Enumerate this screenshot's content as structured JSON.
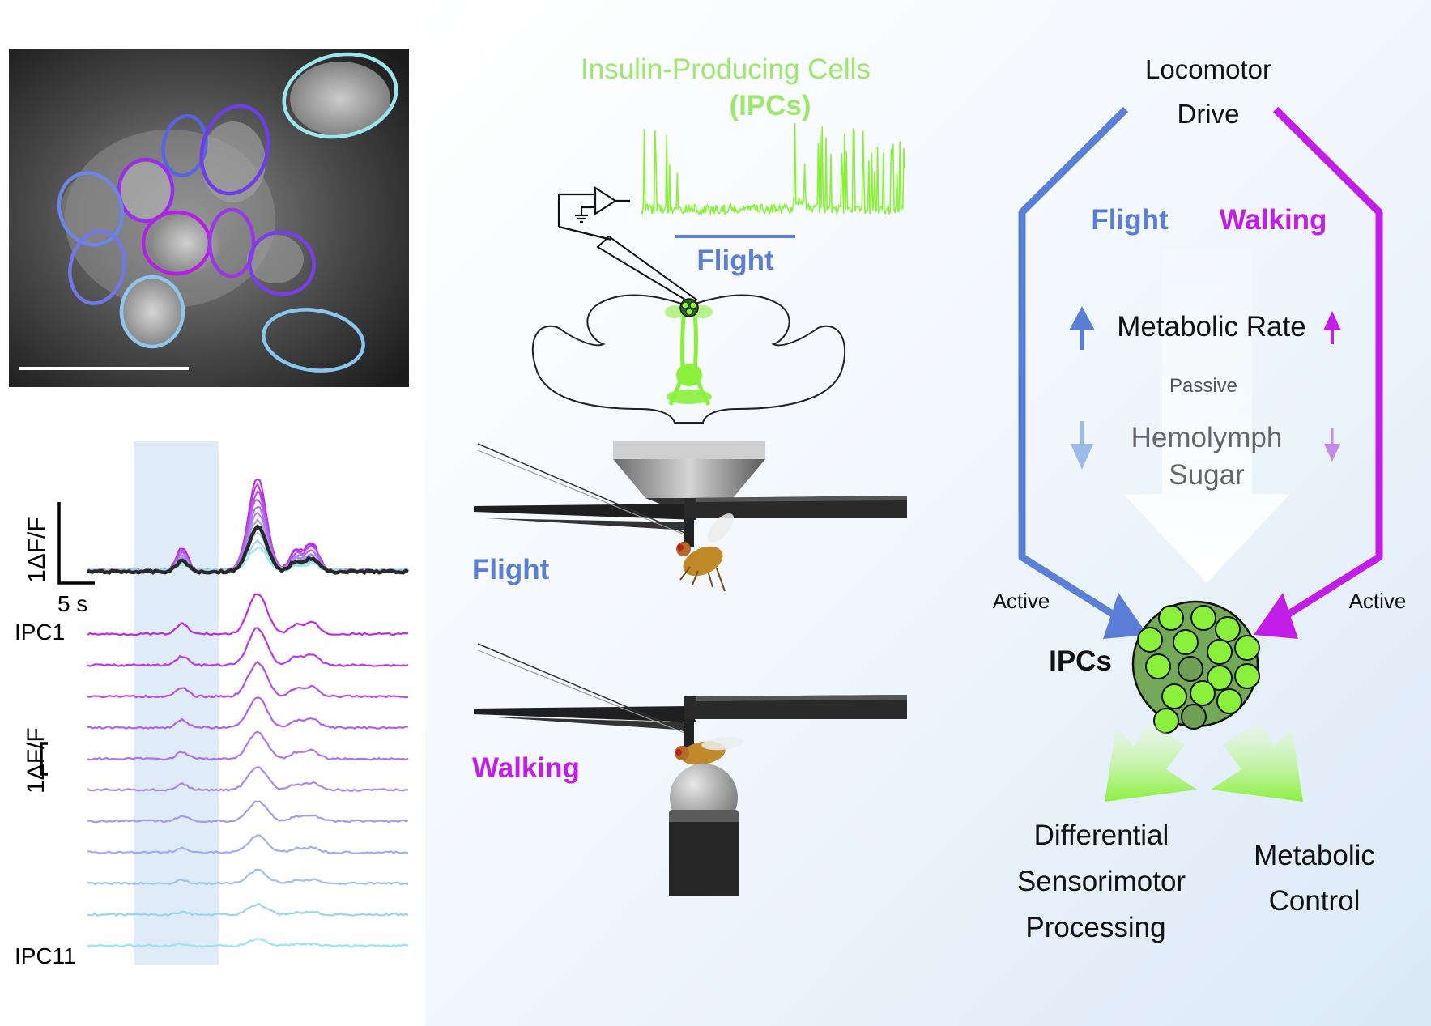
{
  "figure": {
    "panel_left": {
      "scale_bar_1": "1ΔF/F",
      "scale_bar_time": "5 s",
      "scale_bar_2": "1ΔF/F",
      "ipc_first": "IPC1",
      "ipc_last": "IPC11",
      "trace_count": 11
    },
    "panel_middle": {
      "title_line1": "Insulin-Producing Cells",
      "title_line2": "(IPCs)",
      "flight_bar_label": "Flight",
      "setup_flight_label": "Flight",
      "setup_walking_label": "Walking"
    },
    "panel_right": {
      "top_line1": "Locomotor",
      "top_line2": "Drive",
      "left_branch": "Flight",
      "right_branch": "Walking",
      "metabolic_rate": "Metabolic Rate",
      "passive": "Passive",
      "hemolymph_line1": "Hemolymph",
      "hemolymph_line2": "Sugar",
      "active_left": "Active",
      "active_right": "Active",
      "ipcs": "IPCs",
      "out_left_1": "Differential",
      "out_left_2": "Sensorimotor",
      "out_left_3": "Processing",
      "out_right_1": "Metabolic",
      "out_right_2": "Control"
    },
    "colors": {
      "flight_blue": "#5b7fd6",
      "walking_magenta": "#c21ee8",
      "ipc_green": "#8af03c",
      "ipc_text_green": "#9be86a",
      "cell_fill": "#75a95a",
      "dark": "#111111"
    }
  }
}
